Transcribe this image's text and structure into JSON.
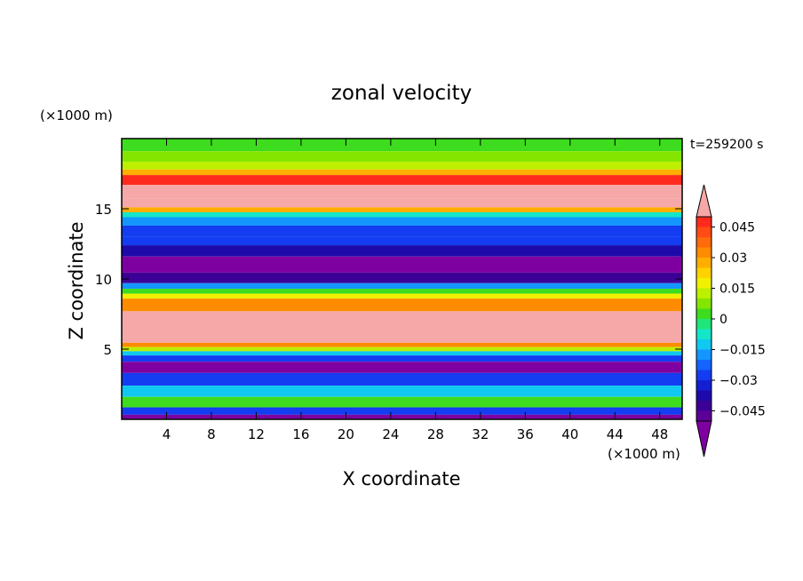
{
  "chart_data": {
    "type": "heatmap",
    "title": "zonal velocity",
    "xlabel": "X coordinate",
    "ylabel": "Z coordinate",
    "x_unit": "(×1000 m)",
    "y_unit": "(×1000 m)",
    "time_label": "t=259200 s",
    "xlim": [
      0,
      50
    ],
    "ylim": [
      0,
      20
    ],
    "x_ticks": [
      4,
      8,
      12,
      16,
      20,
      24,
      28,
      32,
      36,
      40,
      44,
      48
    ],
    "y_ticks": [
      5,
      10,
      15
    ],
    "colorbar": {
      "tick_values": [
        0.045,
        0.03,
        0.015,
        0,
        -0.015,
        -0.03,
        -0.045
      ],
      "tick_labels": [
        "0.045",
        "0.03",
        "0.015",
        "0",
        "−0.015",
        "−0.03",
        "−0.045"
      ],
      "levels": [
        {
          "value": 0.05,
          "color": "#f6a8a8"
        },
        {
          "value": 0.0475,
          "color": "#ff2a1e"
        },
        {
          "value": 0.0425,
          "color": "#ff4b14"
        },
        {
          "value": 0.0375,
          "color": "#ff6a0a"
        },
        {
          "value": 0.0325,
          "color": "#ff8c00"
        },
        {
          "value": 0.0275,
          "color": "#ffae00"
        },
        {
          "value": 0.0225,
          "color": "#ffd200"
        },
        {
          "value": 0.0175,
          "color": "#f0f000"
        },
        {
          "value": 0.0125,
          "color": "#bcef00"
        },
        {
          "value": 0.0075,
          "color": "#84e600"
        },
        {
          "value": 0.0025,
          "color": "#3edc1e"
        },
        {
          "value": -0.0025,
          "color": "#1ee67a"
        },
        {
          "value": -0.0075,
          "color": "#14e6c8"
        },
        {
          "value": -0.0125,
          "color": "#10c8f0"
        },
        {
          "value": -0.0175,
          "color": "#1496ff"
        },
        {
          "value": -0.0225,
          "color": "#1464ff"
        },
        {
          "value": -0.0275,
          "color": "#143cf0"
        },
        {
          "value": -0.0325,
          "color": "#141ed2"
        },
        {
          "value": -0.0375,
          "color": "#1e0aaa"
        },
        {
          "value": -0.0425,
          "color": "#3c0096"
        },
        {
          "value": -0.0475,
          "color": "#5a0096"
        },
        {
          "value": -0.05,
          "color": "#7f00a0"
        }
      ]
    },
    "field_rows": [
      {
        "z": 19.5,
        "u": 0.004
      },
      {
        "z": 18.7,
        "u": 0.008
      },
      {
        "z": 18.0,
        "u": 0.014
      },
      {
        "z": 17.6,
        "u": 0.027
      },
      {
        "z": 17.2,
        "u": 0.047
      },
      {
        "z": 16.2,
        "u": 0.05
      },
      {
        "z": 15.3,
        "u": 0.05
      },
      {
        "z": 14.9,
        "u": 0.03
      },
      {
        "z": 14.6,
        "u": -0.008
      },
      {
        "z": 14.2,
        "u": -0.018
      },
      {
        "z": 13.4,
        "u": -0.028
      },
      {
        "z": 12.6,
        "u": -0.03
      },
      {
        "z": 12.2,
        "u": -0.04
      },
      {
        "z": 11.0,
        "u": -0.05
      },
      {
        "z": 9.9,
        "u": -0.042
      },
      {
        "z": 9.5,
        "u": -0.016
      },
      {
        "z": 9.1,
        "u": 0.004
      },
      {
        "z": 8.8,
        "u": 0.018
      },
      {
        "z": 8.4,
        "u": 0.033
      },
      {
        "z": 7.0,
        "u": 0.05
      },
      {
        "z": 5.6,
        "u": 0.05
      },
      {
        "z": 5.3,
        "u": 0.032
      },
      {
        "z": 5.0,
        "u": 0.014
      },
      {
        "z": 4.7,
        "u": -0.012
      },
      {
        "z": 4.4,
        "u": -0.03
      },
      {
        "z": 3.8,
        "u": -0.05
      },
      {
        "z": 2.8,
        "u": -0.03
      },
      {
        "z": 2.0,
        "u": -0.015
      },
      {
        "z": 1.2,
        "u": 0.0
      },
      {
        "z": 0.5,
        "u": -0.03
      },
      {
        "z": 0.15,
        "u": -0.05
      }
    ]
  }
}
